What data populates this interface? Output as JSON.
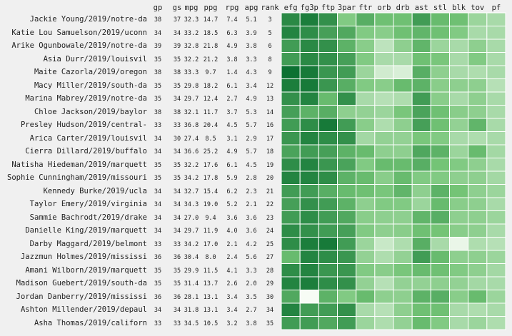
{
  "chart_data": {
    "type": "heatmap",
    "title": "",
    "numeric_columns": [
      "gp",
      "gs",
      "mpg",
      "ppg",
      "rpg",
      "apg",
      "rank"
    ],
    "heat_columns": [
      "efg",
      "fg3p",
      "ftp",
      "3par",
      "ftr",
      "orb",
      "drb",
      "ast",
      "stl",
      "blk",
      "tov",
      "pf"
    ],
    "colormap": {
      "low": "#f7fcf5",
      "mid": "#74c476",
      "high": "#00682a"
    },
    "heat_scale": [
      0,
      1
    ],
    "rows": [
      {
        "label": "Jackie Young/2019/notre-da",
        "gp": "38",
        "gs": "37",
        "mpg": "32.3",
        "ppg": "14.7",
        "rpg": "7.4",
        "apg": "5.1",
        "rank": "3",
        "heat": [
          0.82,
          0.88,
          0.78,
          0.45,
          0.62,
          0.52,
          0.52,
          0.72,
          0.55,
          0.52,
          0.35,
          0.3
        ]
      },
      {
        "label": "Katie Lou Samuelson/2019/uconn",
        "gp": "34",
        "gs": "34",
        "mpg": "33.2",
        "ppg": "18.5",
        "rpg": "6.3",
        "apg": "3.9",
        "rank": "5",
        "heat": [
          0.85,
          0.8,
          0.7,
          0.65,
          0.45,
          0.42,
          0.52,
          0.58,
          0.52,
          0.45,
          0.3,
          0.3
        ]
      },
      {
        "label": "Arike Ogunbowale/2019/notre-da",
        "gp": "39",
        "gs": "39",
        "mpg": "32.8",
        "ppg": "21.8",
        "rpg": "4.9",
        "apg": "3.8",
        "rank": "6",
        "heat": [
          0.72,
          0.82,
          0.78,
          0.6,
          0.42,
          0.22,
          0.4,
          0.58,
          0.35,
          0.3,
          0.4,
          0.3
        ]
      },
      {
        "label": "Asia Durr/2019/louisvil",
        "gp": "35",
        "gs": "35",
        "mpg": "32.2",
        "ppg": "21.2",
        "rpg": "3.8",
        "apg": "3.3",
        "rank": "8",
        "heat": [
          0.72,
          0.82,
          0.78,
          0.7,
          0.45,
          0.3,
          0.3,
          0.52,
          0.48,
          0.3,
          0.45,
          0.3
        ]
      },
      {
        "label": "Maite Cazorla/2019/oregon",
        "gp": "38",
        "gs": "38",
        "mpg": "33.3",
        "ppg": "9.7",
        "rpg": "1.4",
        "apg": "4.3",
        "rank": "9",
        "heat": [
          0.95,
          0.9,
          0.75,
          0.72,
          0.35,
          0.15,
          0.12,
          0.62,
          0.4,
          0.3,
          0.28,
          0.3
        ]
      },
      {
        "label": "Macy Miller/2019/south-da",
        "gp": "35",
        "gs": "35",
        "mpg": "29.8",
        "ppg": "18.2",
        "rpg": "6.1",
        "apg": "3.4",
        "rank": "12",
        "heat": [
          0.88,
          0.9,
          0.75,
          0.62,
          0.45,
          0.42,
          0.55,
          0.6,
          0.42,
          0.4,
          0.4,
          0.25
        ]
      },
      {
        "label": "Marina Mabrey/2019/notre-da",
        "gp": "35",
        "gs": "34",
        "mpg": "29.7",
        "ppg": "12.4",
        "rpg": "2.7",
        "apg": "4.9",
        "rank": "13",
        "heat": [
          0.78,
          0.85,
          0.55,
          0.78,
          0.3,
          0.25,
          0.28,
          0.72,
          0.42,
          0.3,
          0.4,
          0.3
        ]
      },
      {
        "label": "Chloe Jackson/2019/baylor",
        "gp": "38",
        "gs": "38",
        "mpg": "32.1",
        "ppg": "11.7",
        "rpg": "3.7",
        "apg": "5.3",
        "rank": "14",
        "heat": [
          0.7,
          0.6,
          0.62,
          0.4,
          0.38,
          0.35,
          0.48,
          0.68,
          0.52,
          0.42,
          0.4,
          0.3
        ]
      },
      {
        "label": "Presley Hudson/2019/central-",
        "gp": "33",
        "gs": "33",
        "mpg": "36.8",
        "ppg": "20.4",
        "rpg": "4.5",
        "apg": "5.7",
        "rank": "16",
        "heat": [
          0.72,
          0.8,
          0.9,
          0.72,
          0.42,
          0.28,
          0.4,
          0.7,
          0.52,
          0.38,
          0.58,
          0.3
        ]
      },
      {
        "label": "Arica Carter/2019/louisvil",
        "gp": "34",
        "gs": "30",
        "mpg": "27.4",
        "ppg": "8.5",
        "rpg": "3.1",
        "apg": "2.9",
        "rank": "17",
        "heat": [
          0.75,
          0.85,
          0.8,
          0.78,
          0.32,
          0.38,
          0.38,
          0.48,
          0.45,
          0.3,
          0.28,
          0.3
        ]
      },
      {
        "label": "Cierra Dillard/2019/buffalo",
        "gp": "34",
        "gs": "34",
        "mpg": "36.6",
        "ppg": "25.2",
        "rpg": "4.9",
        "apg": "5.7",
        "rank": "18",
        "heat": [
          0.68,
          0.72,
          0.7,
          0.6,
          0.55,
          0.4,
          0.4,
          0.66,
          0.6,
          0.35,
          0.55,
          0.32
        ]
      },
      {
        "label": "Natisha Hiedeman/2019/marquett",
        "gp": "35",
        "gs": "35",
        "mpg": "32.2",
        "ppg": "17.6",
        "rpg": "6.1",
        "apg": "4.5",
        "rank": "19",
        "heat": [
          0.8,
          0.85,
          0.75,
          0.68,
          0.45,
          0.55,
          0.55,
          0.62,
          0.5,
          0.45,
          0.4,
          0.3
        ]
      },
      {
        "label": "Sophie Cunningham/2019/missouri",
        "gp": "35",
        "gs": "35",
        "mpg": "34.2",
        "ppg": "17.8",
        "rpg": "5.9",
        "apg": "2.8",
        "rank": "20",
        "heat": [
          0.85,
          0.85,
          0.8,
          0.6,
          0.55,
          0.42,
          0.55,
          0.45,
          0.45,
          0.4,
          0.4,
          0.32
        ]
      },
      {
        "label": "Kennedy Burke/2019/ucla",
        "gp": "34",
        "gs": "34",
        "mpg": "32.7",
        "ppg": "15.4",
        "rpg": "6.2",
        "apg": "2.3",
        "rank": "21",
        "heat": [
          0.72,
          0.72,
          0.62,
          0.55,
          0.52,
          0.48,
          0.58,
          0.4,
          0.6,
          0.5,
          0.4,
          0.35
        ]
      },
      {
        "label": "Taylor Emery/2019/virginia",
        "gp": "34",
        "gs": "34",
        "mpg": "34.3",
        "ppg": "19.0",
        "rpg": "5.2",
        "apg": "2.1",
        "rank": "22",
        "heat": [
          0.7,
          0.78,
          0.72,
          0.6,
          0.4,
          0.45,
          0.45,
          0.35,
          0.55,
          0.42,
          0.4,
          0.3
        ]
      },
      {
        "label": "Sammie Bachrodt/2019/drake",
        "gp": "34",
        "gs": "34",
        "mpg": "27.0",
        "ppg": "9.4",
        "rpg": "3.6",
        "apg": "3.6",
        "rank": "23",
        "heat": [
          0.72,
          0.8,
          0.72,
          0.65,
          0.42,
          0.4,
          0.4,
          0.58,
          0.62,
          0.4,
          0.4,
          0.35
        ]
      },
      {
        "label": "Danielle King/2019/marquett",
        "gp": "34",
        "gs": "34",
        "mpg": "29.7",
        "ppg": "11.9",
        "rpg": "4.0",
        "apg": "3.6",
        "rank": "24",
        "heat": [
          0.8,
          0.78,
          0.72,
          0.7,
          0.45,
          0.4,
          0.42,
          0.52,
          0.5,
          0.42,
          0.4,
          0.3
        ]
      },
      {
        "label": "Darby Maggard/2019/belmont",
        "gp": "33",
        "gs": "33",
        "mpg": "34.2",
        "ppg": "17.0",
        "rpg": "2.1",
        "apg": "4.2",
        "rank": "25",
        "heat": [
          0.8,
          0.88,
          0.9,
          0.72,
          0.35,
          0.18,
          0.28,
          0.62,
          0.3,
          0.05,
          0.28,
          0.25
        ]
      },
      {
        "label": "Jazzmun Holmes/2019/mississi",
        "gp": "36",
        "gs": "36",
        "mpg": "30.4",
        "ppg": "8.0",
        "rpg": "2.4",
        "apg": "5.6",
        "rank": "27",
        "heat": [
          0.55,
          0.85,
          0.8,
          0.75,
          0.38,
          0.28,
          0.38,
          0.72,
          0.55,
          0.4,
          0.4,
          0.35
        ]
      },
      {
        "label": "Amani Wilborn/2019/marquett",
        "gp": "35",
        "gs": "35",
        "mpg": "29.9",
        "ppg": "11.5",
        "rpg": "4.1",
        "apg": "3.3",
        "rank": "28",
        "heat": [
          0.8,
          0.85,
          0.75,
          0.75,
          0.45,
          0.42,
          0.48,
          0.55,
          0.52,
          0.45,
          0.4,
          0.32
        ]
      },
      {
        "label": "Madison Guebert/2019/south-da",
        "gp": "35",
        "gs": "35",
        "mpg": "31.4",
        "ppg": "13.7",
        "rpg": "2.6",
        "apg": "2.0",
        "rank": "29",
        "heat": [
          0.85,
          0.88,
          0.8,
          0.78,
          0.38,
          0.25,
          0.38,
          0.38,
          0.4,
          0.38,
          0.32,
          0.3
        ]
      },
      {
        "label": "Jordan Danberry/2019/mississi",
        "gp": "36",
        "gs": "36",
        "mpg": "28.1",
        "ppg": "13.1",
        "rpg": "3.4",
        "apg": "3.5",
        "rank": "30",
        "heat": [
          0.65,
          0.0,
          0.6,
          0.45,
          0.55,
          0.4,
          0.4,
          0.6,
          0.62,
          0.42,
          0.55,
          0.35
        ]
      },
      {
        "label": "Ashton Millender/2019/depaul",
        "gp": "34",
        "gs": "34",
        "mpg": "31.8",
        "ppg": "13.1",
        "rpg": "3.4",
        "apg": "2.7",
        "rank": "34",
        "heat": [
          0.85,
          0.72,
          0.72,
          0.78,
          0.3,
          0.25,
          0.4,
          0.52,
          0.52,
          0.3,
          0.28,
          0.3
        ]
      },
      {
        "label": "Asha Thomas/2019/californ",
        "gp": "33",
        "gs": "33",
        "mpg": "34.5",
        "ppg": "10.5",
        "rpg": "3.2",
        "apg": "3.8",
        "rank": "35",
        "heat": [
          0.72,
          0.72,
          0.65,
          0.72,
          0.35,
          0.28,
          0.38,
          0.55,
          0.45,
          0.3,
          0.35,
          0.28
        ]
      }
    ]
  }
}
